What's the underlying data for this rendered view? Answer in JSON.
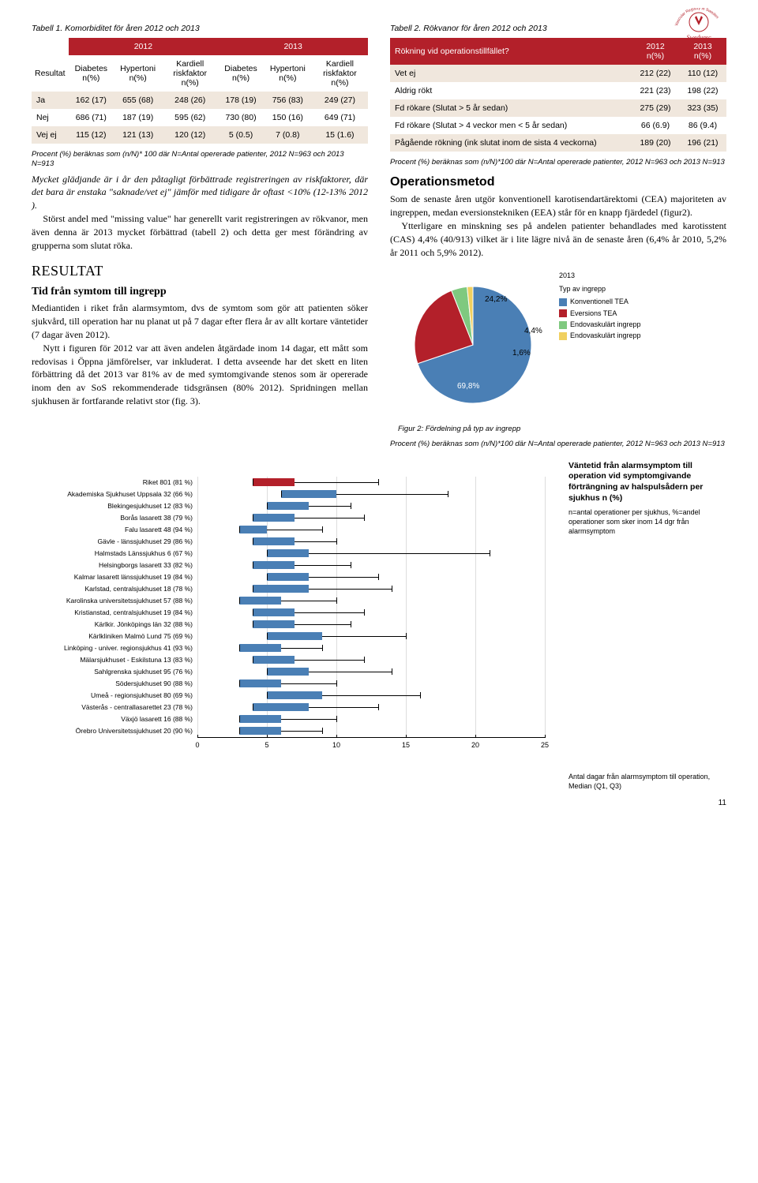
{
  "logo": {
    "top_text": "Vascular Registry in Sweden",
    "bottom_text": "Swedvasc"
  },
  "table1": {
    "caption": "Tabell 1. Komorbiditet för åren 2012 och 2013",
    "year_a": "2012",
    "year_b": "2013",
    "row_header": "Resultat",
    "subcols": [
      "Diabetes n(%)",
      "Hypertoni n(%)",
      "Kardiell riskfaktor n(%)",
      "Diabetes n(%)",
      "Hypertoni n(%)",
      "Kardiell riskfaktor n(%)"
    ],
    "rows": [
      {
        "label": "Ja",
        "cells": [
          "162 (17)",
          "655 (68)",
          "248 (26)",
          "178 (19)",
          "756 (83)",
          "249 (27)"
        ]
      },
      {
        "label": "Nej",
        "cells": [
          "686 (71)",
          "187 (19)",
          "595 (62)",
          "730 (80)",
          "150 (16)",
          "649 (71)"
        ]
      },
      {
        "label": "Vej ej",
        "cells": [
          "115 (12)",
          "121 (13)",
          "120 (12)",
          "5 (0.5)",
          "7 (0.8)",
          "15 (1.6)"
        ]
      }
    ],
    "footnote": "Procent (%) beräknas som (n/N)* 100 där N=Antal opererade patienter, 2012 N=963 och 2013 N=913"
  },
  "left_body": {
    "p1": "Mycket glädjande är i år den påtagligt förbättrade registreringen av riskfaktorer, där det bara är enstaka \"saknade/vet ej\" jämför med tidigare år oftast <10% (12-13% 2012 ).",
    "p2": "Störst andel med \"missing value\" har generellt varit registreringen av rökvanor, men även denna är 2013 mycket förbättrad (tabell 2) och detta ger mest förändring av grupperna som slutat röka.",
    "h2": "Resultat",
    "h3": "Tid från symtom till ingrepp",
    "p3": "Mediantiden i riket från alarmsymtom, dvs de symtom som gör att patienten söker sjukvård, till operation har nu planat ut på 7 dagar efter flera år av allt kortare väntetider (7 dagar även 2012).",
    "p4": "Nytt i figuren för 2012 var att även andelen åtgärdade inom 14 dagar, ett mått som redovisas i Öppna jämförelser, var inkluderat. I detta avseende har det skett en liten förbättring då det 2013 var 81% av de med symtomgivande stenos som är opererade inom den av SoS rekommenderade tidsgränsen (80% 2012). Spridningen mellan sjukhusen är fortfarande relativt stor (fig. 3)."
  },
  "table2": {
    "caption": "Tabell 2. Rökvanor för åren 2012 och 2013",
    "head": [
      "Rökning vid operationstillfället?",
      "2012 n(%)",
      "2013 n(%)"
    ],
    "rows": [
      [
        "Vet ej",
        "212 (22)",
        "110 (12)"
      ],
      [
        "Aldrig rökt",
        "221 (23)",
        "198 (22)"
      ],
      [
        "Fd rökare (Slutat > 5 år sedan)",
        "275 (29)",
        "323 (35)"
      ],
      [
        "Fd rökare (Slutat > 4 veckor men < 5 år sedan)",
        "66 (6.9)",
        "86 (9.4)"
      ],
      [
        "Pågående rökning (ink slutat inom de sista 4 veckorna)",
        "189 (20)",
        "196 (21)"
      ]
    ],
    "footnote": "Procent (%) beräknas som (n/N)*100 där N=Antal opererade patienter, 2012 N=963 och 2013 N=913"
  },
  "right_body": {
    "h3": "Operationsmetod",
    "p1": "Som de senaste åren utgör konventionell karotisendartärektomi (CEA) majoriteten av ingreppen, medan eversionstekniken (EEA) står för en knapp fjärdedel (figur2).",
    "p2": "Ytterligare en minskning ses på andelen patienter behandlades med karotisstent (CAS) 4,4% (40/913) vilket är i lite lägre nivå än de senaste åren (6,4% år 2010, 5,2% år 2011 och 5,9% 2012)."
  },
  "pie": {
    "title": "2013",
    "subtitle": "Typ av ingrepp",
    "slices": [
      {
        "label": "Konventionell TEA",
        "pct": 69.8,
        "color": "#4a7fb5",
        "text": "69,8%"
      },
      {
        "label": "Eversions TEA",
        "pct": 24.2,
        "color": "#b3202a",
        "text": "24,2%"
      },
      {
        "label": "Endovaskulärt ingrepp",
        "pct": 4.4,
        "color": "#7fc97f",
        "text": "4,4%"
      },
      {
        "label": "Endovaskulärt ingrepp",
        "pct": 1.6,
        "color": "#f0d060",
        "text": "1,6%"
      }
    ],
    "caption": "Figur 2: Fördelning på typ av ingrepp",
    "footnote": "Procent (%) beräknas som (n/N)*100 där N=Antal opererade patienter, 2012 N=963 och 2013 N=913"
  },
  "hbar": {
    "side_title": "Väntetid från alarmsymptom till operation vid symptomgivande förträngning av halspulsådern per sjukhus n (%)",
    "side_sub": "n=antal operationer per sjukhus, %=andel operationer som sker inom 14 dgr från alarmsymptom",
    "xmax": 25,
    "xticks": [
      0,
      5,
      10,
      15,
      20,
      25
    ],
    "xlabel": "Antal dagar från alarmsymptom till operation, Median (Q1, Q3)",
    "riket_color": "#b3202a",
    "bar_color": "#4a7fb5",
    "rows": [
      {
        "label": "Riket 801 (81 %)",
        "q1": 4,
        "med": 7,
        "q3": 13,
        "riket": true
      },
      {
        "label": "Akademiska Sjukhuset Uppsala 32 (66 %)",
        "q1": 6,
        "med": 10,
        "q3": 18
      },
      {
        "label": "Blekingesjukhuset 12 (83 %)",
        "q1": 5,
        "med": 8,
        "q3": 11
      },
      {
        "label": "Borås lasarett 38 (79 %)",
        "q1": 4,
        "med": 7,
        "q3": 12
      },
      {
        "label": "Falu lasarett 48 (94 %)",
        "q1": 3,
        "med": 5,
        "q3": 9
      },
      {
        "label": "Gävle - länssjukhuset 29 (86 %)",
        "q1": 4,
        "med": 7,
        "q3": 10
      },
      {
        "label": "Halmstads Länssjukhus 6 (67 %)",
        "q1": 5,
        "med": 8,
        "q3": 21
      },
      {
        "label": "Helsingborgs lasarett 33 (82 %)",
        "q1": 4,
        "med": 7,
        "q3": 11
      },
      {
        "label": "Kalmar lasarett länssjukhuset 19 (84 %)",
        "q1": 5,
        "med": 8,
        "q3": 13
      },
      {
        "label": "Karlstad, centralsjukhuset 18 (78 %)",
        "q1": 4,
        "med": 8,
        "q3": 14
      },
      {
        "label": "Karolinska universitetssjukhuset 57 (88 %)",
        "q1": 3,
        "med": 6,
        "q3": 10
      },
      {
        "label": "Kristianstad, centralsjukhuset 19 (84 %)",
        "q1": 4,
        "med": 7,
        "q3": 12
      },
      {
        "label": "Kärlkir. Jönköpings län 32 (88 %)",
        "q1": 4,
        "med": 7,
        "q3": 11
      },
      {
        "label": "Kärlkliniken Malmö Lund 75 (69 %)",
        "q1": 5,
        "med": 9,
        "q3": 15
      },
      {
        "label": "Linköping - univer. regionsjukhus 41 (93 %)",
        "q1": 3,
        "med": 6,
        "q3": 9
      },
      {
        "label": "Mälarsjukhuset - Eskilstuna 13 (83 %)",
        "q1": 4,
        "med": 7,
        "q3": 12
      },
      {
        "label": "Sahlgrenska sjukhuset 95 (76 %)",
        "q1": 5,
        "med": 8,
        "q3": 14
      },
      {
        "label": "Södersjukhuset 90 (88 %)",
        "q1": 3,
        "med": 6,
        "q3": 10
      },
      {
        "label": "Umeå - regionsjukhuset 80 (69 %)",
        "q1": 5,
        "med": 9,
        "q3": 16
      },
      {
        "label": "Västerås - centrallasarettet 23 (78 %)",
        "q1": 4,
        "med": 8,
        "q3": 13
      },
      {
        "label": "Växjö lasarett 16 (88 %)",
        "q1": 3,
        "med": 6,
        "q3": 10
      },
      {
        "label": "Örebro Universitetssjukhuset 20 (90 %)",
        "q1": 3,
        "med": 6,
        "q3": 9
      }
    ]
  },
  "page_number": "11"
}
